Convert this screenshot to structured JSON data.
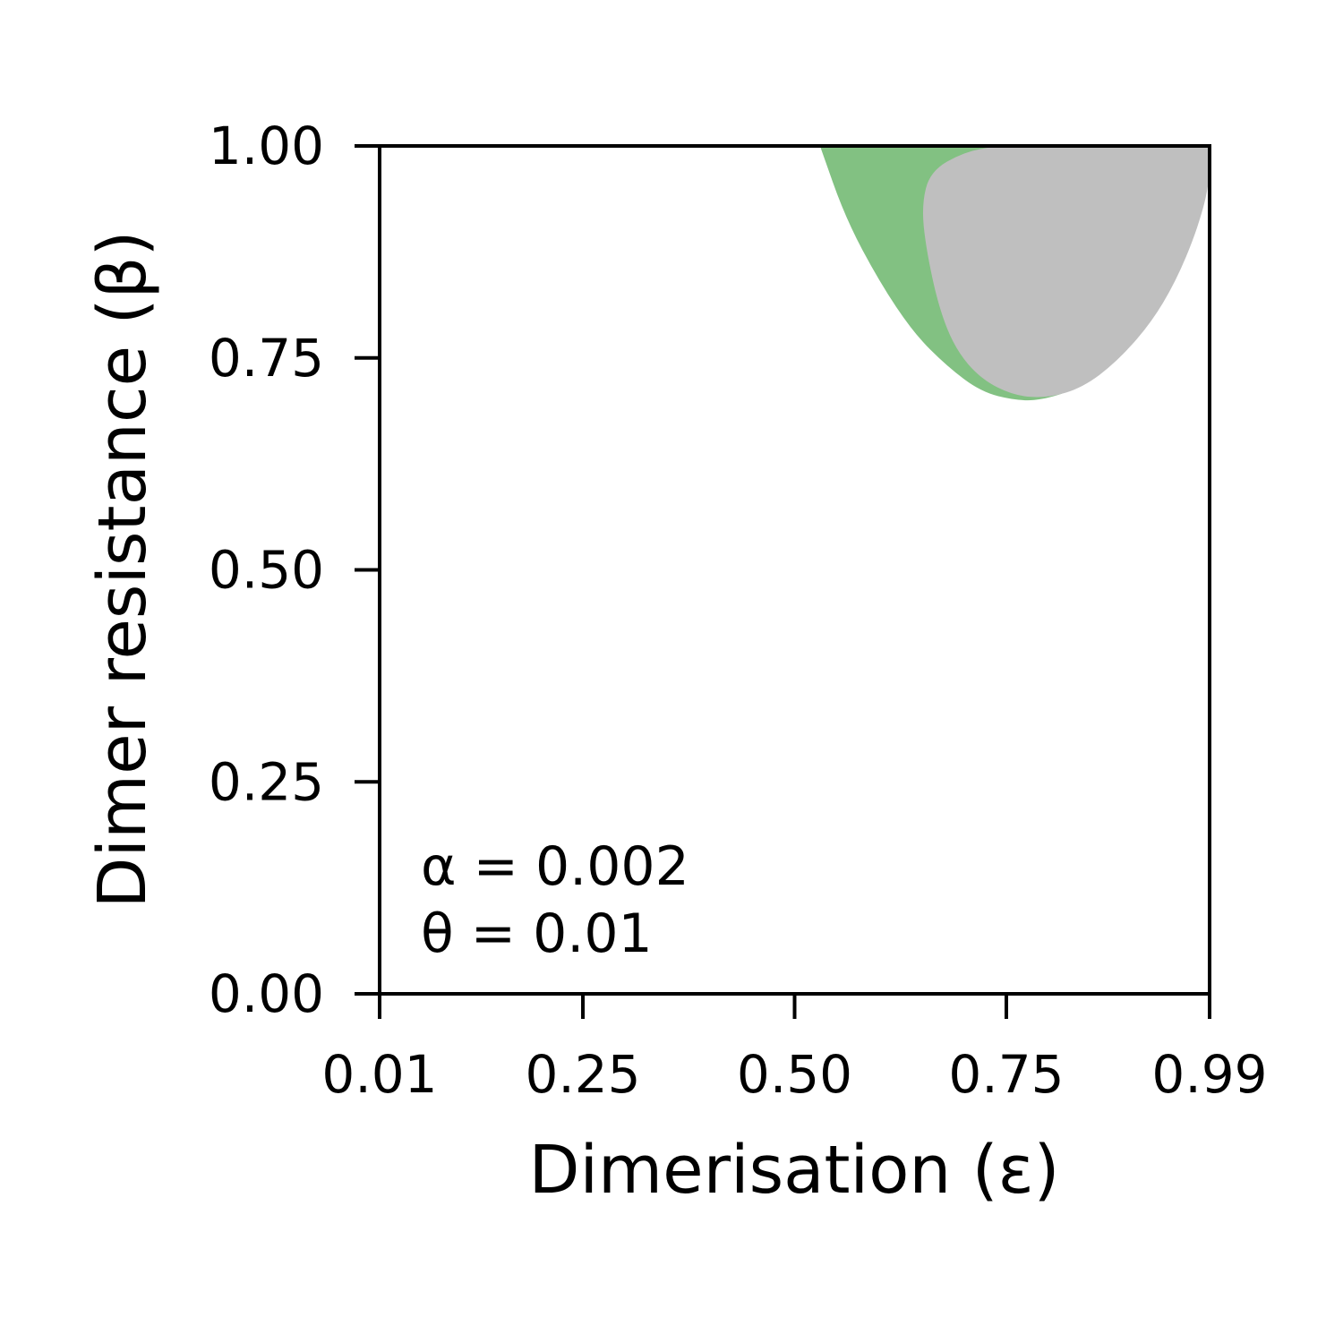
{
  "chart_data": {
    "type": "area",
    "xlabel": "Dimerisation (ε)",
    "ylabel": "Dimer resistance (β)",
    "xlim": [
      0.01,
      0.99
    ],
    "ylim": [
      0,
      1
    ],
    "xticks": [
      "0.01",
      "0.25",
      "0.50",
      "0.75",
      "0.99"
    ],
    "yticks": [
      "0.00",
      "0.25",
      "0.50",
      "0.75",
      "1.00"
    ],
    "xtick_values": [
      0.01,
      0.25,
      0.5,
      0.75,
      0.99
    ],
    "ytick_values": [
      0.0,
      0.25,
      0.5,
      0.75,
      1.0
    ],
    "grid": false,
    "annotations": [
      "α = 0.002",
      "θ = 0.01"
    ],
    "regions": [
      {
        "color": "#82c182",
        "outline": [
          [
            0.53,
            1.0
          ],
          [
            0.56,
            0.915
          ],
          [
            0.6,
            0.84
          ],
          [
            0.64,
            0.78
          ],
          [
            0.68,
            0.74
          ],
          [
            0.72,
            0.71
          ],
          [
            0.76,
            0.7
          ],
          [
            0.79,
            0.7
          ],
          [
            0.83,
            0.712
          ],
          [
            0.87,
            0.745
          ],
          [
            0.91,
            0.805
          ],
          [
            0.95,
            0.88
          ],
          [
            0.99,
            1.0
          ]
        ]
      },
      {
        "color": "#bfbfbf",
        "outline": [
          [
            0.99,
            1.0
          ],
          [
            0.99,
            0.955
          ],
          [
            0.975,
            0.9
          ],
          [
            0.95,
            0.84
          ],
          [
            0.92,
            0.79
          ],
          [
            0.88,
            0.745
          ],
          [
            0.84,
            0.715
          ],
          [
            0.8,
            0.703
          ],
          [
            0.76,
            0.705
          ],
          [
            0.72,
            0.725
          ],
          [
            0.69,
            0.76
          ],
          [
            0.67,
            0.81
          ],
          [
            0.655,
            0.88
          ],
          [
            0.65,
            0.93
          ],
          [
            0.66,
            0.97
          ],
          [
            0.7,
            0.993
          ],
          [
            0.74,
            1.0
          ]
        ]
      }
    ]
  }
}
